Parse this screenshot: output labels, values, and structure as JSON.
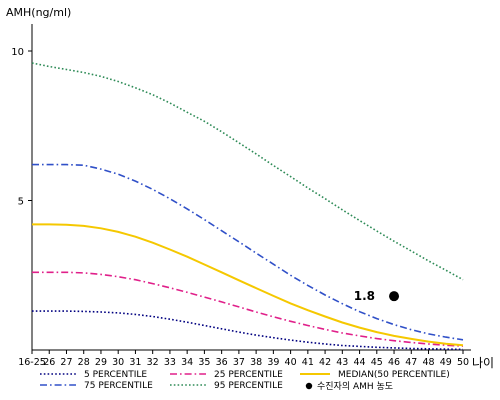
{
  "chart_data": {
    "type": "line",
    "title": "",
    "ylabel": "AMH(ng/ml)",
    "xlabel": "나이",
    "ylim": [
      0,
      10
    ],
    "yticks": [
      5,
      10
    ],
    "x": [
      "16-25",
      "26",
      "27",
      "28",
      "29",
      "30",
      "31",
      "32",
      "33",
      "34",
      "35",
      "36",
      "37",
      "38",
      "39",
      "40",
      "41",
      "42",
      "43",
      "44",
      "45",
      "46",
      "47",
      "48",
      "49",
      "50"
    ],
    "series": [
      {
        "name": "5 PERCENTILE",
        "color": "#000080",
        "style": "dotted",
        "values": [
          1.3,
          1.3,
          1.3,
          1.29,
          1.27,
          1.24,
          1.19,
          1.12,
          1.03,
          0.93,
          0.82,
          0.71,
          0.6,
          0.5,
          0.41,
          0.33,
          0.26,
          0.2,
          0.15,
          0.12,
          0.09,
          0.07,
          0.05,
          0.04,
          0.03,
          0.02
        ]
      },
      {
        "name": "25 PERCENTILE",
        "color": "#e0208a",
        "style": "dashdot",
        "values": [
          2.6,
          2.6,
          2.6,
          2.58,
          2.53,
          2.45,
          2.35,
          2.22,
          2.08,
          1.93,
          1.77,
          1.61,
          1.44,
          1.27,
          1.11,
          0.96,
          0.82,
          0.69,
          0.57,
          0.47,
          0.38,
          0.31,
          0.25,
          0.2,
          0.16,
          0.13
        ]
      },
      {
        "name": "MEDIAN(50 PERCENTILE)",
        "color": "#f5c800",
        "style": "solid",
        "values": [
          4.2,
          4.2,
          4.19,
          4.15,
          4.07,
          3.95,
          3.79,
          3.59,
          3.36,
          3.12,
          2.86,
          2.6,
          2.33,
          2.07,
          1.81,
          1.56,
          1.33,
          1.12,
          0.92,
          0.75,
          0.6,
          0.47,
          0.37,
          0.28,
          0.21,
          0.16
        ]
      },
      {
        "name": "75 PERCENTILE",
        "color": "#3050c8",
        "style": "dashdot",
        "values": [
          6.2,
          6.2,
          6.2,
          6.18,
          6.05,
          5.88,
          5.65,
          5.37,
          5.06,
          4.72,
          4.36,
          3.99,
          3.62,
          3.24,
          2.87,
          2.5,
          2.16,
          1.84,
          1.55,
          1.28,
          1.05,
          0.85,
          0.68,
          0.54,
          0.43,
          0.34
        ]
      },
      {
        "name": "95 PERCENTILE",
        "color": "#2e8b57",
        "style": "dotted",
        "values": [
          9.6,
          9.48,
          9.38,
          9.28,
          9.15,
          8.98,
          8.77,
          8.54,
          8.26,
          7.95,
          7.65,
          7.3,
          6.93,
          6.56,
          6.17,
          5.8,
          5.42,
          5.06,
          4.69,
          4.33,
          3.98,
          3.64,
          3.31,
          2.98,
          2.67,
          2.35
        ]
      }
    ],
    "marker": {
      "name": "수진자의 AMH 농도",
      "label": "1.8",
      "x": "46",
      "y": 1.8,
      "color": "#000000"
    },
    "legend_position": "bottom"
  }
}
